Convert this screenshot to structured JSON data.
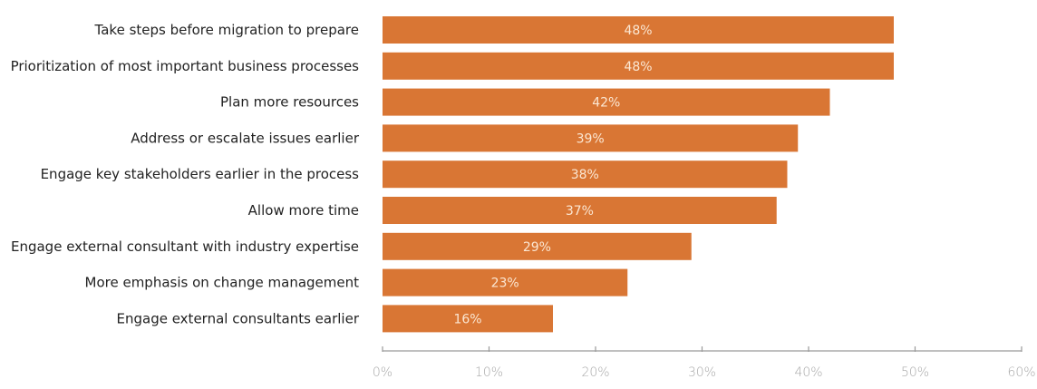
{
  "chart_data": {
    "type": "bar",
    "orientation": "horizontal",
    "title": "",
    "xlabel": "",
    "ylabel": "",
    "categories": [
      "Take steps before migration to prepare",
      "Prioritization of most important business processes",
      "Plan more resources",
      "Address or escalate issues earlier",
      "Engage key stakeholders earlier in the process",
      "Allow more time",
      "Engage external consultant with industry expertise",
      "More emphasis on change management",
      "Engage external consultants earlier"
    ],
    "values": [
      48,
      48,
      42,
      39,
      38,
      37,
      29,
      23,
      16
    ],
    "data_labels": [
      "48%",
      "48%",
      "42%",
      "39%",
      "38%",
      "37%",
      "29%",
      "23%",
      "16%"
    ],
    "xlim": [
      0,
      60
    ],
    "xticks": [
      0,
      10,
      20,
      30,
      40,
      50,
      60
    ],
    "xtick_labels": [
      "0%",
      "10%",
      "20%",
      "30%",
      "40%",
      "50%",
      "60%"
    ],
    "grid": false,
    "legend": "none",
    "bar_color": "#d97634"
  }
}
